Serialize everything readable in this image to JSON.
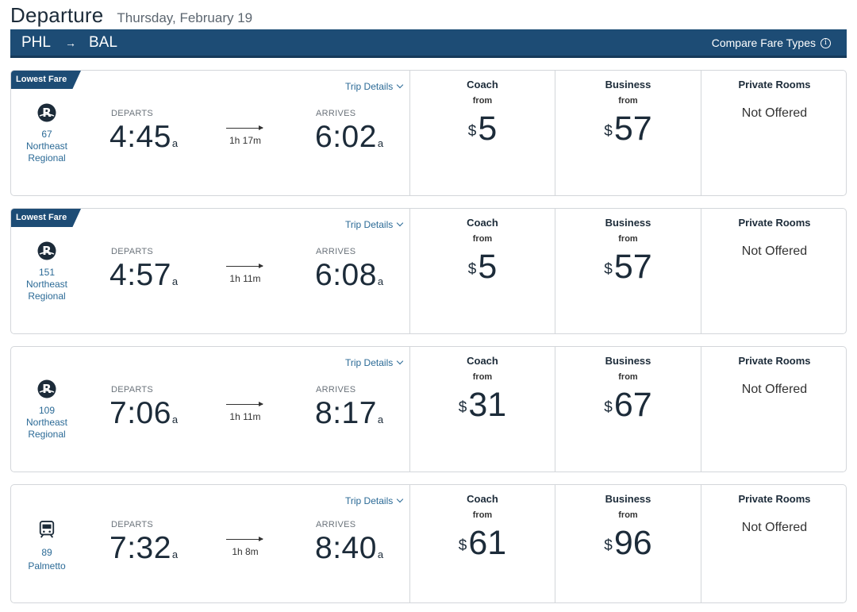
{
  "header": {
    "title": "Departure",
    "date": "Thursday, February 19"
  },
  "route": {
    "from": "PHL",
    "arrow": "→",
    "to": "BAL",
    "compare_label": "Compare Fare Types",
    "info_icon": "i"
  },
  "labels": {
    "departs": "DEPARTS",
    "arrives": "ARRIVES",
    "trip_details": "Trip Details",
    "coach": "Coach",
    "business": "Business",
    "private_rooms": "Private Rooms",
    "from": "from",
    "not_offered": "Not Offered",
    "currency": "$"
  },
  "trains": [
    {
      "badge": "Lowest Fare",
      "icon": "acela-regional-logo-icon",
      "number": "67",
      "name_line1": "Northeast",
      "name_line2": "Regional",
      "depart_time": "4:45",
      "depart_ampm": "a",
      "duration": "1h 17m",
      "arrive_time": "6:02",
      "arrive_ampm": "a",
      "coach_price": "5",
      "business_price": "57"
    },
    {
      "badge": "Lowest Fare",
      "icon": "acela-regional-logo-icon",
      "number": "151",
      "name_line1": "Northeast",
      "name_line2": "Regional",
      "depart_time": "4:57",
      "depart_ampm": "a",
      "duration": "1h 11m",
      "arrive_time": "6:08",
      "arrive_ampm": "a",
      "coach_price": "5",
      "business_price": "57"
    },
    {
      "badge": "",
      "icon": "acela-regional-logo-icon",
      "number": "109",
      "name_line1": "Northeast",
      "name_line2": "Regional",
      "depart_time": "7:06",
      "depart_ampm": "a",
      "duration": "1h 11m",
      "arrive_time": "8:17",
      "arrive_ampm": "a",
      "coach_price": "31",
      "business_price": "67"
    },
    {
      "badge": "",
      "icon": "train-icon",
      "number": "89",
      "name_line1": "Palmetto",
      "name_line2": "",
      "depart_time": "7:32",
      "depart_ampm": "a",
      "duration": "1h 8m",
      "arrive_time": "8:40",
      "arrive_ampm": "a",
      "coach_price": "61",
      "business_price": "96"
    }
  ]
}
